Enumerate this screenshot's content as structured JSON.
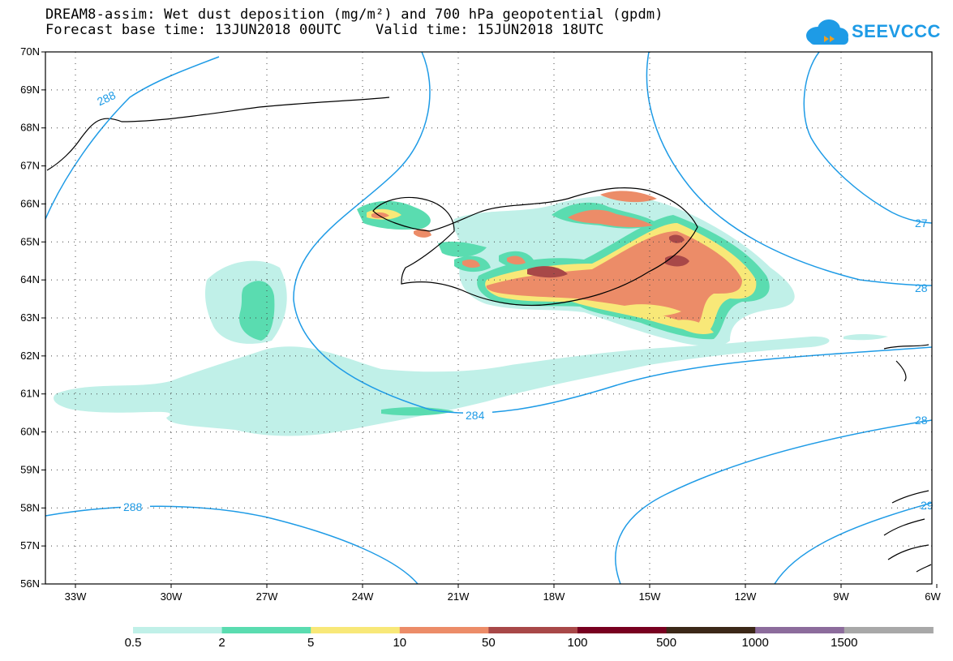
{
  "title": {
    "line1": "DREAM8-assim: Wet dust deposition (mg/m²) and 700 hPa geopotential (gpdm)",
    "line2": "Forecast base time: 13JUN2018 00UTC    Valid time: 15JUN2018 18UTC"
  },
  "logo": {
    "text": "SEEVCCC",
    "icon": "cloud-icon",
    "color": "#1e9be6"
  },
  "axes": {
    "lat_labels": [
      "70N",
      "69N",
      "68N",
      "67N",
      "66N",
      "65N",
      "64N",
      "63N",
      "62N",
      "61N",
      "60N",
      "59N",
      "58N",
      "57N",
      "56N"
    ],
    "lon_labels": [
      "33W",
      "30W",
      "27W",
      "24W",
      "21W",
      "18W",
      "15W",
      "12W",
      "9W",
      "6W"
    ]
  },
  "contours": {
    "color": "#1e9be6",
    "labels": [
      "288",
      "284",
      "288",
      "27",
      "28",
      "28",
      "29"
    ]
  },
  "legend": {
    "colors": [
      "#c0f0e8",
      "#5adcb0",
      "#f8e878",
      "#ec8c68",
      "#a84848",
      "#780020",
      "#3c2818",
      "#8c6c9c",
      "#a8a8a8"
    ],
    "labels": [
      "0.5",
      "2",
      "5",
      "10",
      "50",
      "100",
      "500",
      "1000",
      "1500"
    ]
  }
}
